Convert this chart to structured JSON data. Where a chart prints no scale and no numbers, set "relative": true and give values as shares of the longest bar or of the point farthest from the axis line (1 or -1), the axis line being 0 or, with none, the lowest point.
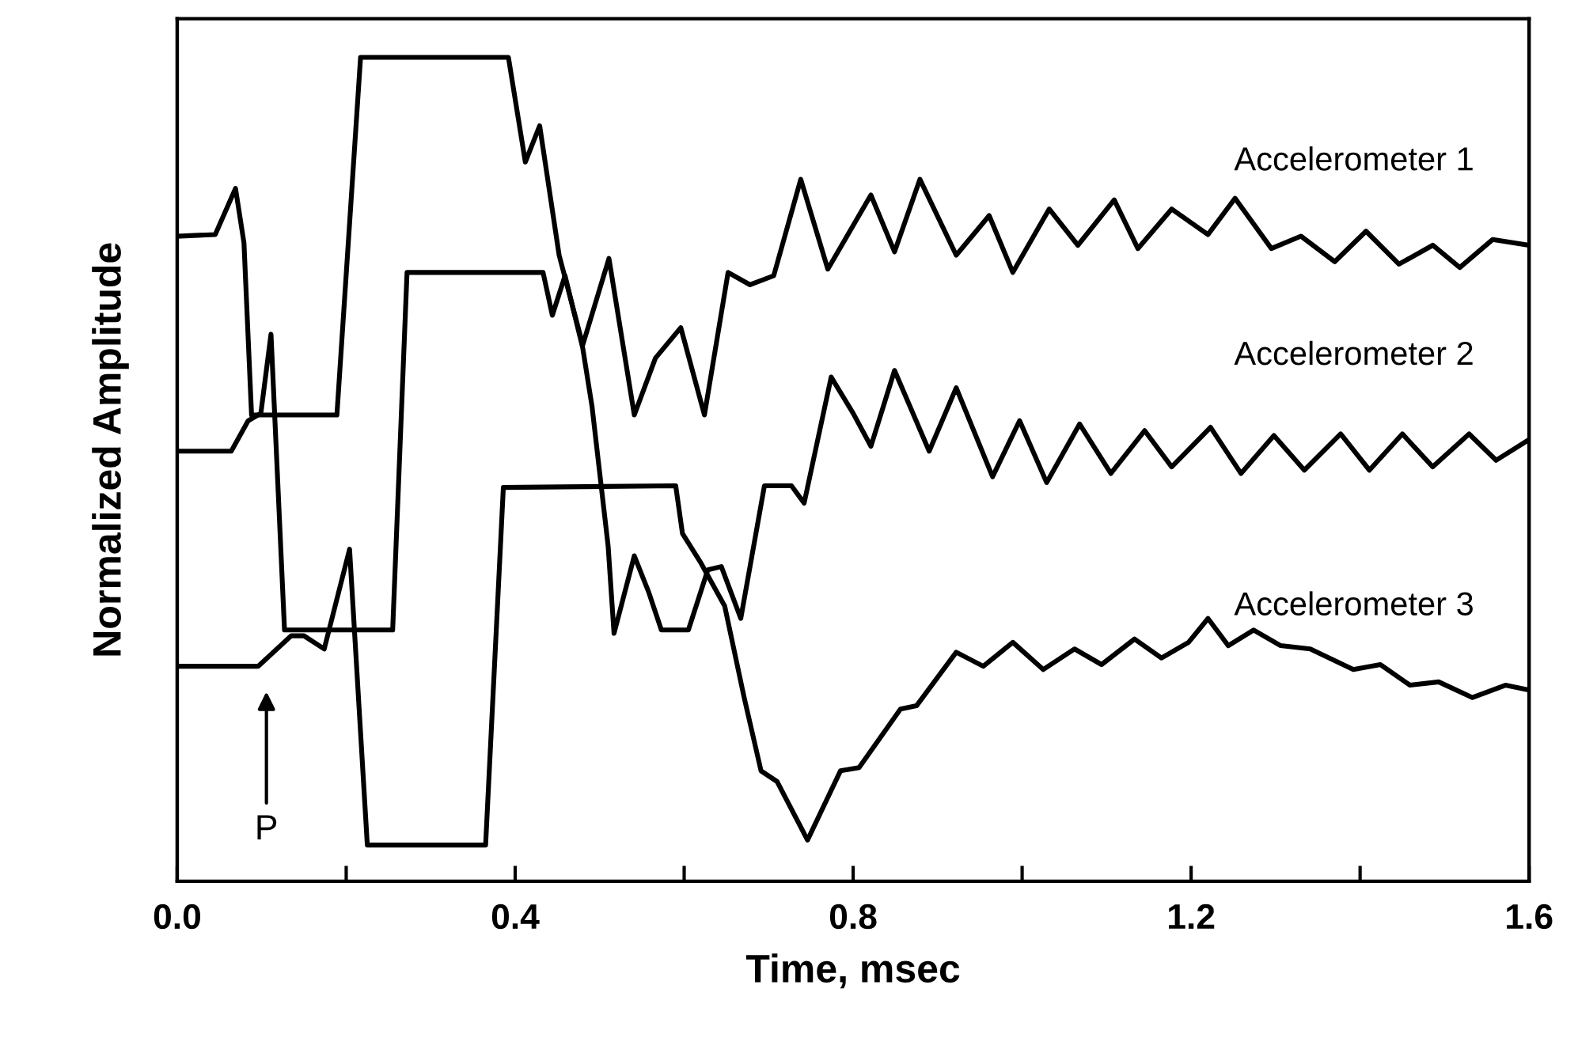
{
  "chart_data": {
    "type": "line",
    "relative": true,
    "xlabel": "Time, msec",
    "ylabel": "Normalized Amplitude",
    "xlim": [
      0,
      1.6
    ],
    "xticks": [
      {
        "value": 0,
        "label": "0.0"
      },
      {
        "value": 0.2,
        "label": null
      },
      {
        "value": 0.4,
        "label": "0.4"
      },
      {
        "value": 0.6,
        "label": null
      },
      {
        "value": 0.8,
        "label": "0.8"
      },
      {
        "value": 1.0,
        "label": null
      },
      {
        "value": 1.2,
        "label": "1.2"
      },
      {
        "value": 1.4,
        "label": null
      },
      {
        "value": 1.6,
        "label": "1.6"
      }
    ],
    "tick_labels": "x",
    "grid": false,
    "legend": false,
    "marker": "none",
    "line_style": "solid",
    "annotations": [
      "P"
    ],
    "series": [
      {
        "name": "Accelerometer 1",
        "color": "#000000",
        "x": [
          0.0,
          0.045,
          0.069,
          0.079,
          0.088,
          0.189,
          0.217,
          0.392,
          0.412,
          0.429,
          0.452,
          0.48,
          0.511,
          0.541,
          0.566,
          0.596,
          0.624,
          0.652,
          0.678,
          0.706,
          0.738,
          0.77,
          0.821,
          0.849,
          0.879,
          0.922,
          0.961,
          0.989,
          1.032,
          1.066,
          1.109,
          1.137,
          1.177,
          1.22,
          1.252,
          1.295,
          1.33,
          1.37,
          1.407,
          1.446,
          1.486,
          1.518,
          1.557,
          1.6
        ],
        "values": [
          0.783,
          0.785,
          0.841,
          0.775,
          0.566,
          0.566,
          1.0,
          1.0,
          0.873,
          0.917,
          0.76,
          0.651,
          0.756,
          0.566,
          0.635,
          0.672,
          0.566,
          0.739,
          0.724,
          0.735,
          0.852,
          0.743,
          0.833,
          0.764,
          0.852,
          0.76,
          0.808,
          0.739,
          0.816,
          0.772,
          0.827,
          0.768,
          0.816,
          0.785,
          0.829,
          0.768,
          0.783,
          0.752,
          0.789,
          0.749,
          0.772,
          0.745,
          0.779,
          0.772
        ]
      },
      {
        "name": "Accelerometer 2",
        "color": "#000000",
        "x": [
          0.0,
          0.064,
          0.084,
          0.099,
          0.111,
          0.127,
          0.255,
          0.272,
          0.433,
          0.444,
          0.459,
          0.48,
          0.491,
          0.51,
          0.517,
          0.541,
          0.558,
          0.573,
          0.605,
          0.628,
          0.644,
          0.667,
          0.695,
          0.727,
          0.742,
          0.774,
          0.8,
          0.821,
          0.849,
          0.89,
          0.922,
          0.965,
          0.997,
          1.029,
          1.068,
          1.105,
          1.145,
          1.177,
          1.223,
          1.259,
          1.298,
          1.334,
          1.377,
          1.411,
          1.45,
          1.486,
          1.529,
          1.561,
          1.6
        ],
        "values": [
          0.522,
          0.522,
          0.559,
          0.568,
          0.664,
          0.305,
          0.305,
          0.739,
          0.739,
          0.687,
          0.735,
          0.647,
          0.576,
          0.407,
          0.301,
          0.395,
          0.351,
          0.305,
          0.305,
          0.378,
          0.382,
          0.319,
          0.48,
          0.48,
          0.459,
          0.612,
          0.568,
          0.528,
          0.62,
          0.522,
          0.599,
          0.491,
          0.559,
          0.484,
          0.555,
          0.495,
          0.547,
          0.503,
          0.551,
          0.495,
          0.541,
          0.499,
          0.543,
          0.499,
          0.543,
          0.503,
          0.543,
          0.511,
          0.536
        ]
      },
      {
        "name": "Accelerometer 3",
        "color": "#000000",
        "x": [
          0.0,
          0.096,
          0.135,
          0.15,
          0.174,
          0.204,
          0.225,
          0.365,
          0.386,
          0.59,
          0.598,
          0.62,
          0.648,
          0.671,
          0.691,
          0.71,
          0.746,
          0.785,
          0.807,
          0.856,
          0.875,
          0.922,
          0.954,
          0.989,
          1.025,
          1.062,
          1.094,
          1.133,
          1.165,
          1.197,
          1.22,
          1.244,
          1.274,
          1.306,
          1.341,
          1.392,
          1.424,
          1.459,
          1.493,
          1.533,
          1.572,
          1.6
        ],
        "values": [
          0.261,
          0.261,
          0.298,
          0.298,
          0.282,
          0.403,
          0.044,
          0.044,
          0.478,
          0.48,
          0.422,
          0.386,
          0.334,
          0.223,
          0.134,
          0.121,
          0.05,
          0.134,
          0.138,
          0.209,
          0.213,
          0.278,
          0.261,
          0.29,
          0.257,
          0.282,
          0.263,
          0.294,
          0.271,
          0.29,
          0.319,
          0.286,
          0.305,
          0.286,
          0.282,
          0.257,
          0.263,
          0.238,
          0.242,
          0.223,
          0.238,
          0.232
        ]
      }
    ]
  }
}
